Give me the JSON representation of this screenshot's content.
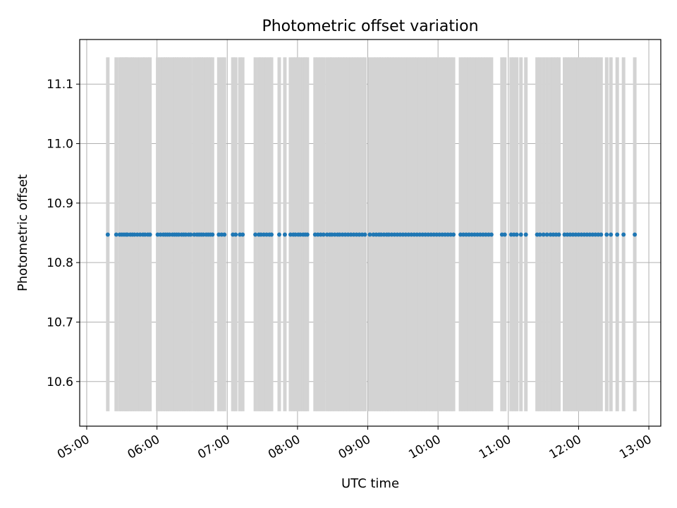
{
  "chart_data": {
    "type": "scatter",
    "title": "Photometric offset variation",
    "xlabel": "UTC time",
    "ylabel": "Photometric offset",
    "x_range_hours": [
      4.9,
      13.17
    ],
    "ylim": [
      10.525,
      11.175
    ],
    "grid": true,
    "legend": "none",
    "x_ticks": [
      {
        "value": 5,
        "label": "05:00"
      },
      {
        "value": 6,
        "label": "06:00"
      },
      {
        "value": 7,
        "label": "07:00"
      },
      {
        "value": 8,
        "label": "08:00"
      },
      {
        "value": 9,
        "label": "09:00"
      },
      {
        "value": 10,
        "label": "10:00"
      },
      {
        "value": 11,
        "label": "11:00"
      },
      {
        "value": 12,
        "label": "12:00"
      },
      {
        "value": 13,
        "label": "13:00"
      }
    ],
    "y_ticks": [
      {
        "value": 10.6,
        "label": "10.6"
      },
      {
        "value": 10.7,
        "label": "10.7"
      },
      {
        "value": 10.8,
        "label": "10.8"
      },
      {
        "value": 10.9,
        "label": "10.9"
      },
      {
        "value": 11.0,
        "label": "11.0"
      },
      {
        "value": 11.1,
        "label": "11.1"
      }
    ],
    "errorbar_range": [
      10.55,
      11.145
    ],
    "y_value": 10.847,
    "x_hours": [
      5.3,
      5.42,
      5.47,
      5.5,
      5.53,
      5.56,
      5.58,
      5.62,
      5.65,
      5.68,
      5.72,
      5.76,
      5.8,
      5.83,
      5.87,
      5.9,
      6.01,
      6.05,
      6.09,
      6.12,
      6.15,
      6.18,
      6.22,
      6.25,
      6.28,
      6.31,
      6.35,
      6.38,
      6.41,
      6.45,
      6.48,
      6.53,
      6.57,
      6.6,
      6.63,
      6.66,
      6.7,
      6.73,
      6.76,
      6.79,
      6.88,
      6.92,
      6.96,
      7.08,
      7.12,
      7.18,
      7.22,
      7.4,
      7.45,
      7.48,
      7.52,
      7.56,
      7.6,
      7.63,
      7.74,
      7.82,
      7.9,
      7.94,
      7.97,
      8.01,
      8.04,
      8.08,
      8.11,
      8.14,
      8.25,
      8.29,
      8.33,
      8.37,
      8.42,
      8.46,
      8.49,
      8.53,
      8.57,
      8.6,
      8.64,
      8.68,
      8.72,
      8.76,
      8.8,
      8.84,
      8.88,
      8.92,
      8.96,
      9.03,
      9.08,
      9.12,
      9.16,
      9.19,
      9.23,
      9.27,
      9.3,
      9.34,
      9.38,
      9.42,
      9.46,
      9.5,
      9.54,
      9.58,
      9.62,
      9.66,
      9.7,
      9.74,
      9.78,
      9.82,
      9.86,
      9.9,
      9.94,
      9.98,
      10.02,
      10.06,
      10.1,
      10.14,
      10.18,
      10.22,
      10.32,
      10.36,
      10.4,
      10.44,
      10.48,
      10.52,
      10.56,
      10.6,
      10.64,
      10.68,
      10.72,
      10.76,
      10.91,
      10.95,
      11.04,
      11.08,
      11.12,
      11.18,
      11.25,
      11.41,
      11.45,
      11.5,
      11.55,
      11.6,
      11.64,
      11.68,
      11.72,
      11.8,
      11.84,
      11.88,
      11.92,
      11.96,
      12.0,
      12.04,
      12.08,
      12.12,
      12.16,
      12.2,
      12.24,
      12.28,
      12.32,
      12.4,
      12.46,
      12.55,
      12.64,
      12.8
    ]
  }
}
